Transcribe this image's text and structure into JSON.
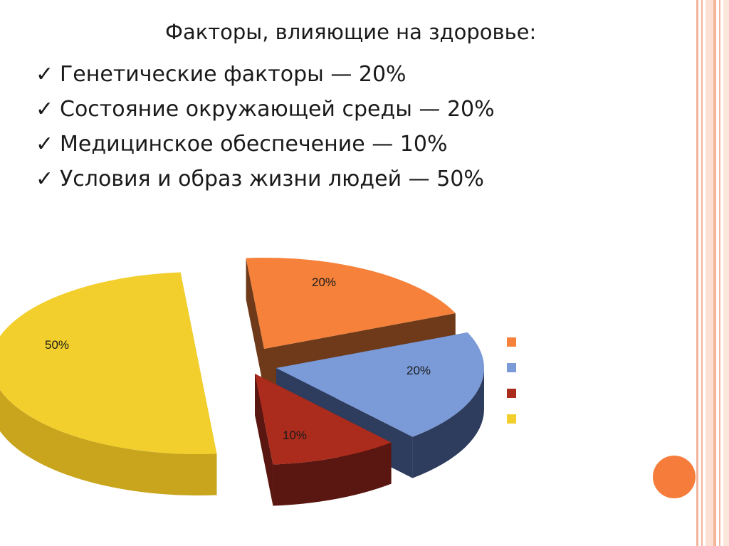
{
  "heading": "Факторы, влияющие на здоровье:",
  "factors": [
    {
      "text": "Генетические факторы — 20%"
    },
    {
      "text": "Состояние окружающей среды — 20%"
    },
    {
      "text": "Медицинское обеспечение — 10%"
    },
    {
      "text": "Условия и образ жизни людей — 50%"
    }
  ],
  "check_mark": "✓",
  "chart_data": {
    "type": "pie",
    "style": "3d-exploded",
    "slices": [
      {
        "label": "20%",
        "value": 20,
        "color": "#f5813a",
        "side_color": "#6e3a1a"
      },
      {
        "label": "20%",
        "value": 20,
        "color": "#7b9bd8",
        "side_color": "#2e3d5e"
      },
      {
        "label": "10%",
        "value": 10,
        "color": "#ab2b1c",
        "side_color": "#5a1610"
      },
      {
        "label": "50%",
        "value": 50,
        "color": "#f2cf2c",
        "side_color": "#c8a51c"
      }
    ],
    "legend": {
      "position": "right",
      "show_text": false
    }
  },
  "decor": {
    "circle_color": "#f57c3a",
    "border_color": "#f4b49a"
  }
}
